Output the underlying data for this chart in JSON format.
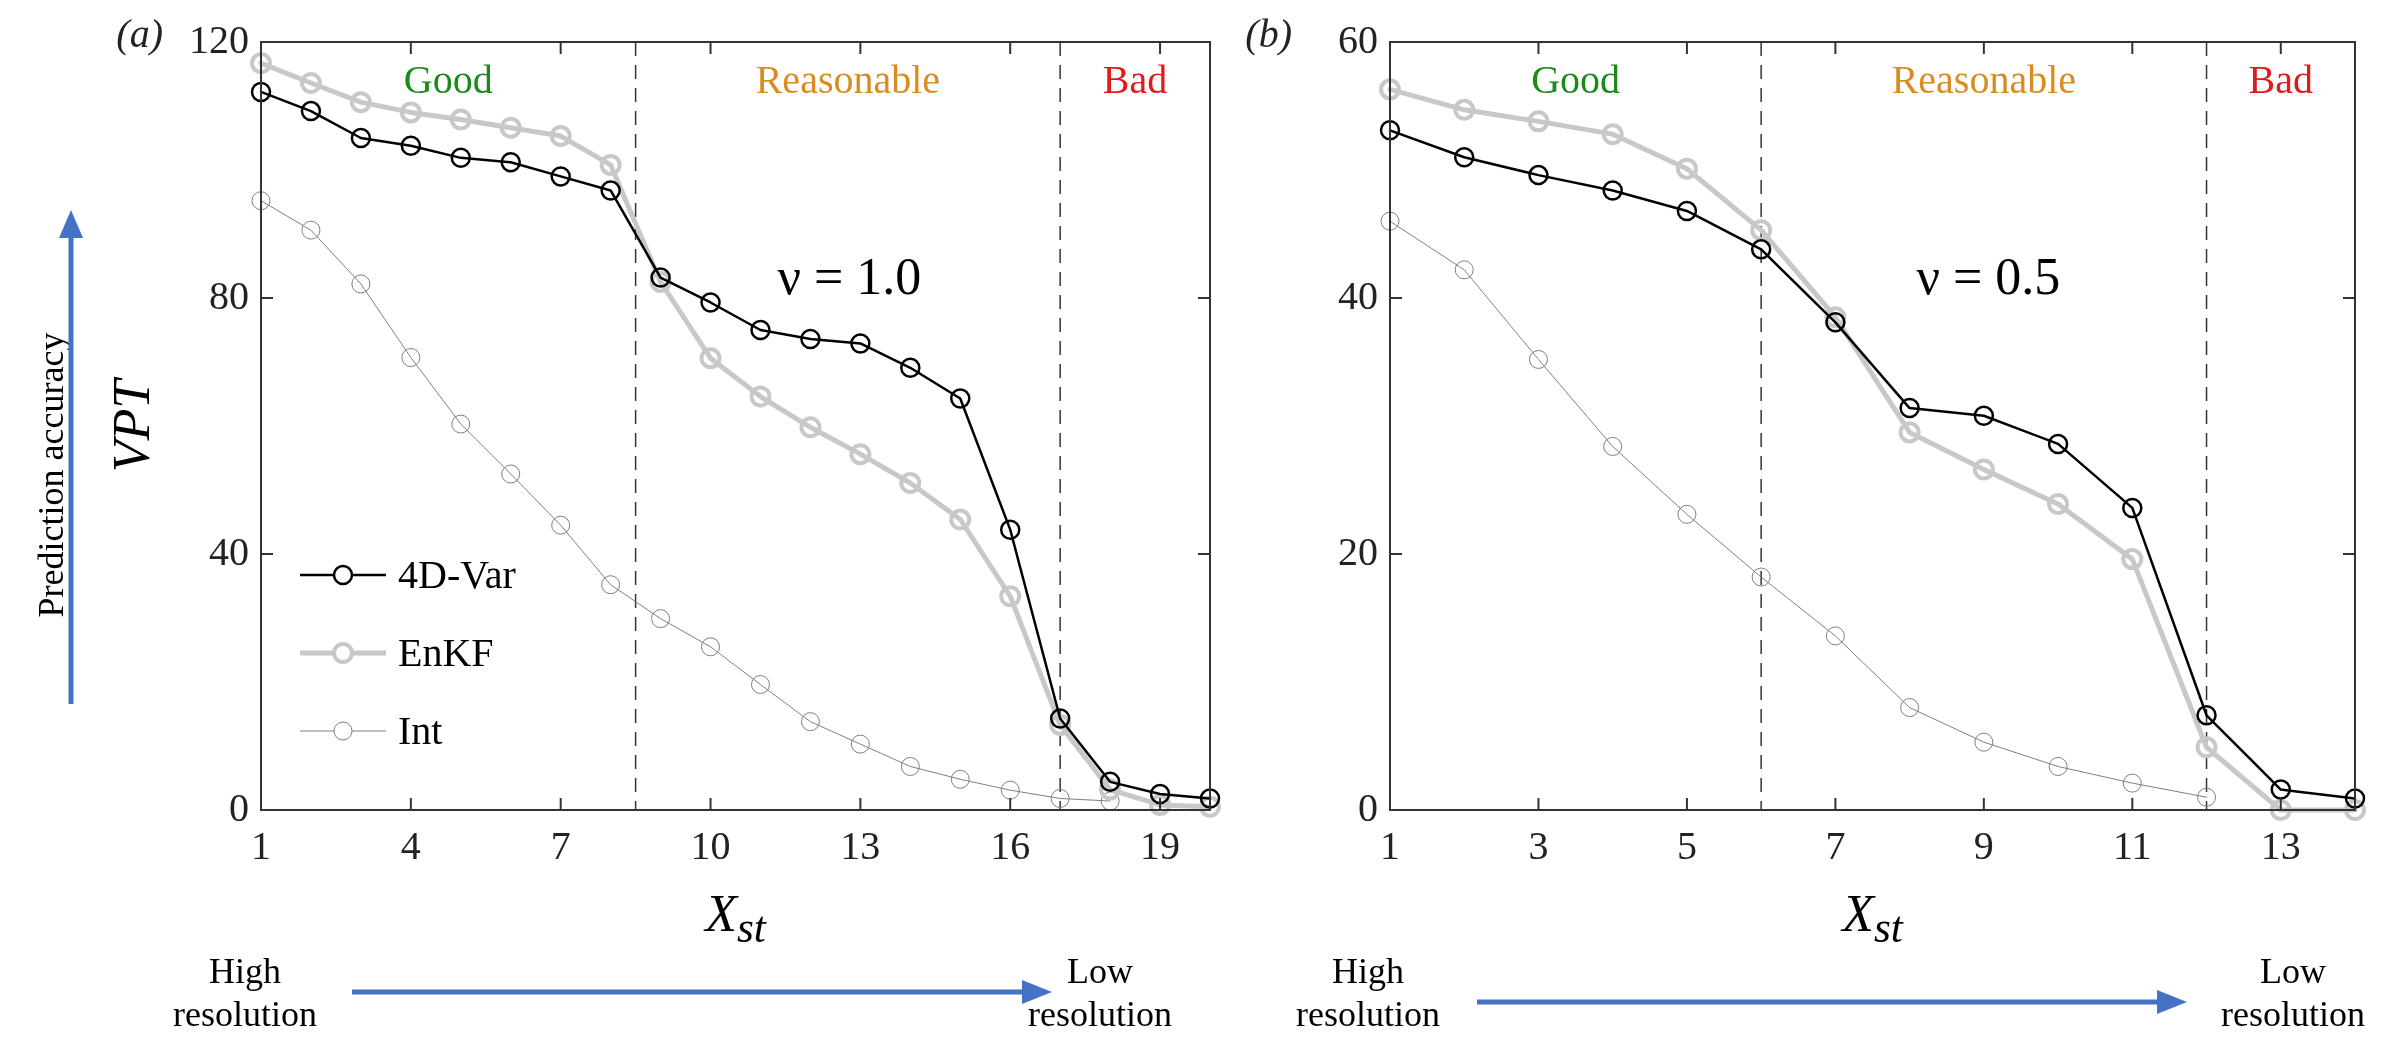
{
  "chart_data": [
    {
      "type": "line",
      "title": "(a)",
      "xlabel": "X$_{st}$",
      "ylabel": "VPT",
      "x": [
        1,
        2,
        3,
        4,
        5,
        6,
        7,
        8,
        9,
        10,
        11,
        12,
        13,
        14,
        15,
        16,
        17,
        18,
        19,
        20
      ],
      "series": [
        {
          "name": "4D-Var",
          "color": "#000000",
          "values": [
            112.2,
            109.2,
            105,
            103.8,
            101.9,
            101.2,
            99,
            96.8,
            83.2,
            79.3,
            75,
            73.6,
            72.9,
            69.1,
            64.3,
            43.8,
            14.3,
            4.4,
            2.5,
            1.8
          ]
        },
        {
          "name": "EnKF",
          "color": "#c8c8c8",
          "values": [
            116.7,
            113.6,
            110.6,
            109,
            107.9,
            106.6,
            105.3,
            100.8,
            82.5,
            70.6,
            64.6,
            59.8,
            55.6,
            51.1,
            45.4,
            33.4,
            13.3,
            3.2,
            0.8,
            0.5
          ]
        },
        {
          "name": "Int",
          "color": "#808080",
          "values": [
            95.2,
            90.6,
            82.2,
            70.7,
            60.3,
            52.5,
            44.5,
            35.2,
            29.9,
            25.5,
            19.6,
            13.8,
            10.3,
            6.8,
            4.8,
            3.1,
            1.8,
            1.4,
            null,
            null
          ]
        }
      ],
      "xlim": [
        1,
        20
      ],
      "xticks": [
        1,
        4,
        7,
        10,
        13,
        16,
        19
      ],
      "ylim": [
        0,
        120
      ],
      "yticks": [
        0,
        40,
        80,
        120
      ],
      "grid": false,
      "legend": "bottom left",
      "marker": "circle",
      "line_style": "solid",
      "ref_lines": [
        {
          "axis": "x",
          "value": 8.5,
          "line_style": "dashed",
          "color": "#333333"
        },
        {
          "axis": "x",
          "value": 17,
          "line_style": "dashed",
          "color": "#333333"
        }
      ],
      "annotations": [
        "Good",
        "Reasonable",
        "Bad",
        "ν = 1.0",
        "Prediction accuracy",
        "High resolution",
        "Low resolution"
      ]
    },
    {
      "type": "line",
      "title": "(b)",
      "xlabel": "X$_{st}$",
      "x": [
        1,
        2,
        3,
        4,
        5,
        6,
        7,
        8,
        9,
        10,
        11,
        12,
        13,
        14
      ],
      "series": [
        {
          "color": "#000000",
          "values": [
            53.1,
            51,
            49.6,
            48.4,
            46.8,
            43.8,
            38.1,
            31.4,
            30.8,
            28.6,
            23.6,
            7.4,
            1.6,
            0.9
          ]
        },
        {
          "color": "#c8c8c8",
          "values": [
            56.3,
            54.7,
            53.8,
            52.8,
            50.1,
            45.3,
            38.5,
            29.5,
            26.6,
            23.9,
            19.6,
            4.9,
            0,
            0
          ]
        },
        {
          "color": "#808080",
          "values": [
            46,
            42.2,
            35.2,
            28.4,
            23.1,
            18.2,
            13.6,
            8,
            5.3,
            3.4,
            2.1,
            1,
            null,
            null
          ]
        }
      ],
      "xlim": [
        1,
        14
      ],
      "xticks": [
        1,
        3,
        5,
        7,
        9,
        11,
        13
      ],
      "ylim": [
        0,
        60
      ],
      "yticks": [
        0,
        20,
        40,
        60
      ],
      "grid": false,
      "marker": "circle",
      "line_style": "solid",
      "ref_lines": [
        {
          "axis": "x",
          "value": 6,
          "line_style": "dashed",
          "color": "#333333"
        },
        {
          "axis": "x",
          "value": 12,
          "line_style": "dashed",
          "color": "#333333"
        }
      ],
      "annotations": [
        "Good",
        "Reasonable",
        "Bad",
        "ν = 0.5",
        "High resolution",
        "Low resolution"
      ]
    }
  ]
}
